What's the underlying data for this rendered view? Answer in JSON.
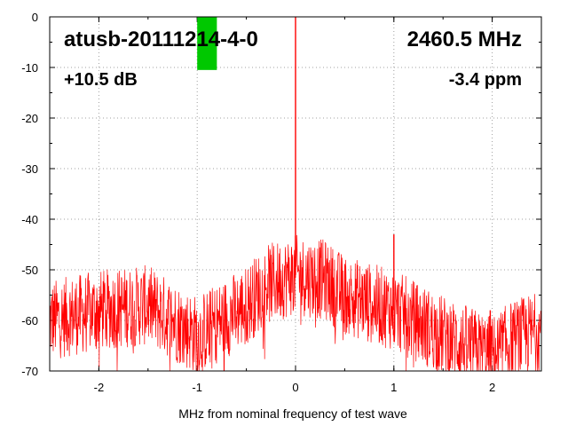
{
  "chart_data": {
    "type": "line",
    "xlabel": "MHz from nominal frequency of test wave",
    "ylabel": "",
    "xlim": [
      -2.5,
      2.5
    ],
    "ylim": [
      -70,
      0
    ],
    "x_ticks": [
      -2,
      -1,
      0,
      1,
      2
    ],
    "x_tick_labels": [
      "-2",
      "-1",
      "0",
      "1",
      "2"
    ],
    "y_ticks": [
      0,
      -10,
      -20,
      -30,
      -40,
      -50,
      -60,
      -70
    ],
    "y_tick_labels": [
      "0",
      "-10",
      "-20",
      "-30",
      "-40",
      "-50",
      "-60",
      "-70"
    ],
    "grid": true,
    "series": [
      {
        "color": "#ff0000",
        "envelope_x": [
          -2.5,
          -2.0,
          -1.5,
          -1.0,
          -0.5,
          -0.3,
          0.0,
          0.3,
          0.5,
          1.0,
          1.5,
          2.0,
          2.2,
          2.5
        ],
        "envelope_y": [
          -60,
          -58,
          -57,
          -63,
          -57,
          -53,
          -51,
          -52,
          -55,
          -58,
          -63,
          -67,
          -64,
          -62
        ],
        "noise_spread_db": 8,
        "peaks": [
          {
            "x": 0.0,
            "y": 0
          },
          {
            "x": 1.0,
            "y": -43
          },
          {
            "x": 1.98,
            "y": -58
          }
        ]
      }
    ],
    "annotations": {
      "device": "atusb-20111214-4-0",
      "frequency": "2460.5 MHz",
      "gain": "+10.5 dB",
      "ppm": "-3.4 ppm"
    },
    "level_marker": {
      "color": "#00c800",
      "x_from": -1.0,
      "x_to": -0.8,
      "y_top": 0,
      "y_bottom": -10.5
    }
  }
}
